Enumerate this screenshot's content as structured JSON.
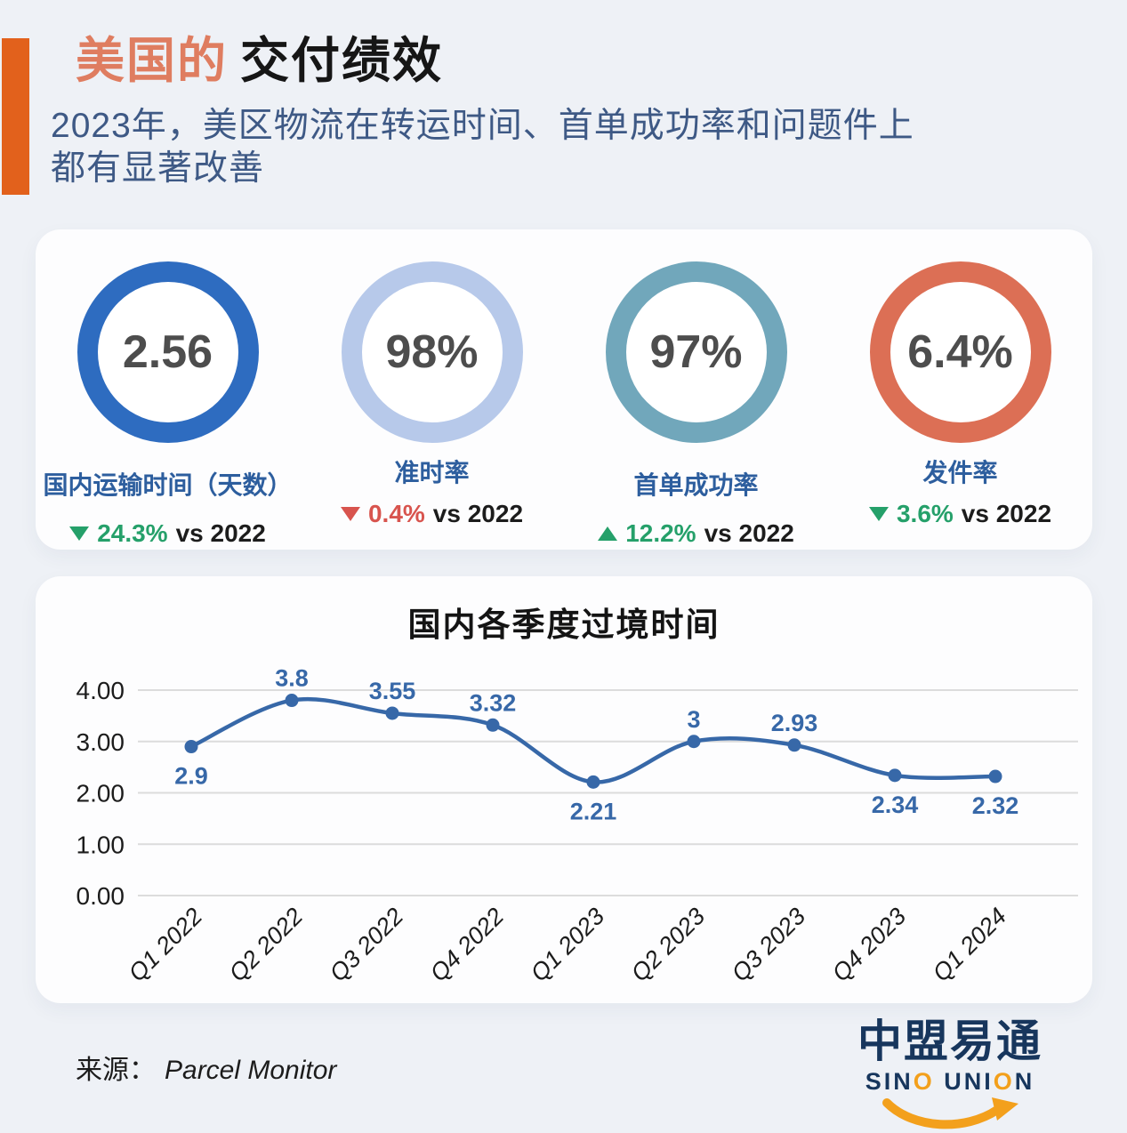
{
  "header": {
    "title_highlight": "美国的",
    "title_rest": "交付绩效",
    "subtitle_line1": "2023年，美区物流在转运时间、首单成功率和问题件上",
    "subtitle_line2": "都有显著改善"
  },
  "stats": [
    {
      "value": "2.56",
      "label": "国内运输时间（天数）",
      "ring_color": "#2e6cc0",
      "delta": "24.3%",
      "delta_direction": "down",
      "delta_color": "#25a06a",
      "vs": "vs 2022"
    },
    {
      "value": "98%",
      "label": "准时率",
      "ring_color": "#b7c9ea",
      "delta": "0.4%",
      "delta_direction": "down",
      "delta_color": "#d8544e",
      "vs": "vs 2022"
    },
    {
      "value": "97%",
      "label": "首单成功率",
      "ring_color": "#71a7bb",
      "delta": "12.2%",
      "delta_direction": "up",
      "delta_color": "#25a06a",
      "vs": "vs 2022"
    },
    {
      "value": "6.4%",
      "label": "发件率",
      "ring_color": "#dc6f55",
      "delta": "3.6%",
      "delta_direction": "down",
      "delta_color": "#25a06a",
      "vs": "vs 2022"
    }
  ],
  "chart_data": {
    "type": "line",
    "title": "国内各季度过境时间",
    "categories": [
      "Q1 2022",
      "Q2 2022",
      "Q3 2022",
      "Q4 2022",
      "Q1 2023",
      "Q2 2023",
      "Q3 2023",
      "Q4 2023",
      "Q1 2024"
    ],
    "values": [
      2.9,
      3.8,
      3.55,
      3.32,
      2.21,
      3,
      2.93,
      2.34,
      2.32
    ],
    "value_labels": [
      "2.9",
      "3.8",
      "3.55",
      "3.32",
      "2.21",
      "3",
      "2.93",
      "2.34",
      "2.32"
    ],
    "label_positions": [
      "below",
      "above",
      "above",
      "above",
      "below",
      "above",
      "above",
      "below",
      "below"
    ],
    "y_ticks": [
      "4.00",
      "3.00",
      "2.00",
      "1.00",
      "0.00"
    ],
    "ylim": [
      0,
      4
    ],
    "xlabel": "",
    "ylabel": "",
    "grid": true,
    "legend": "none",
    "line_color": "#3768a8",
    "grid_color": "#dcdcdc"
  },
  "footer": {
    "source_label": "来源：",
    "source_value": "Parcel Monitor"
  },
  "logo": {
    "cn": "中盟易通",
    "en": "SINO UNION",
    "navy": "#17365d",
    "orange": "#f3a01c"
  },
  "colors": {
    "accent": "#e2611c",
    "title_highlight": "#df7d60",
    "subtitle": "#3e5985",
    "stat_label_blue": "#2d5e9e",
    "green": "#25a06a",
    "red": "#d8544e",
    "page_background": "#eef1f6"
  }
}
